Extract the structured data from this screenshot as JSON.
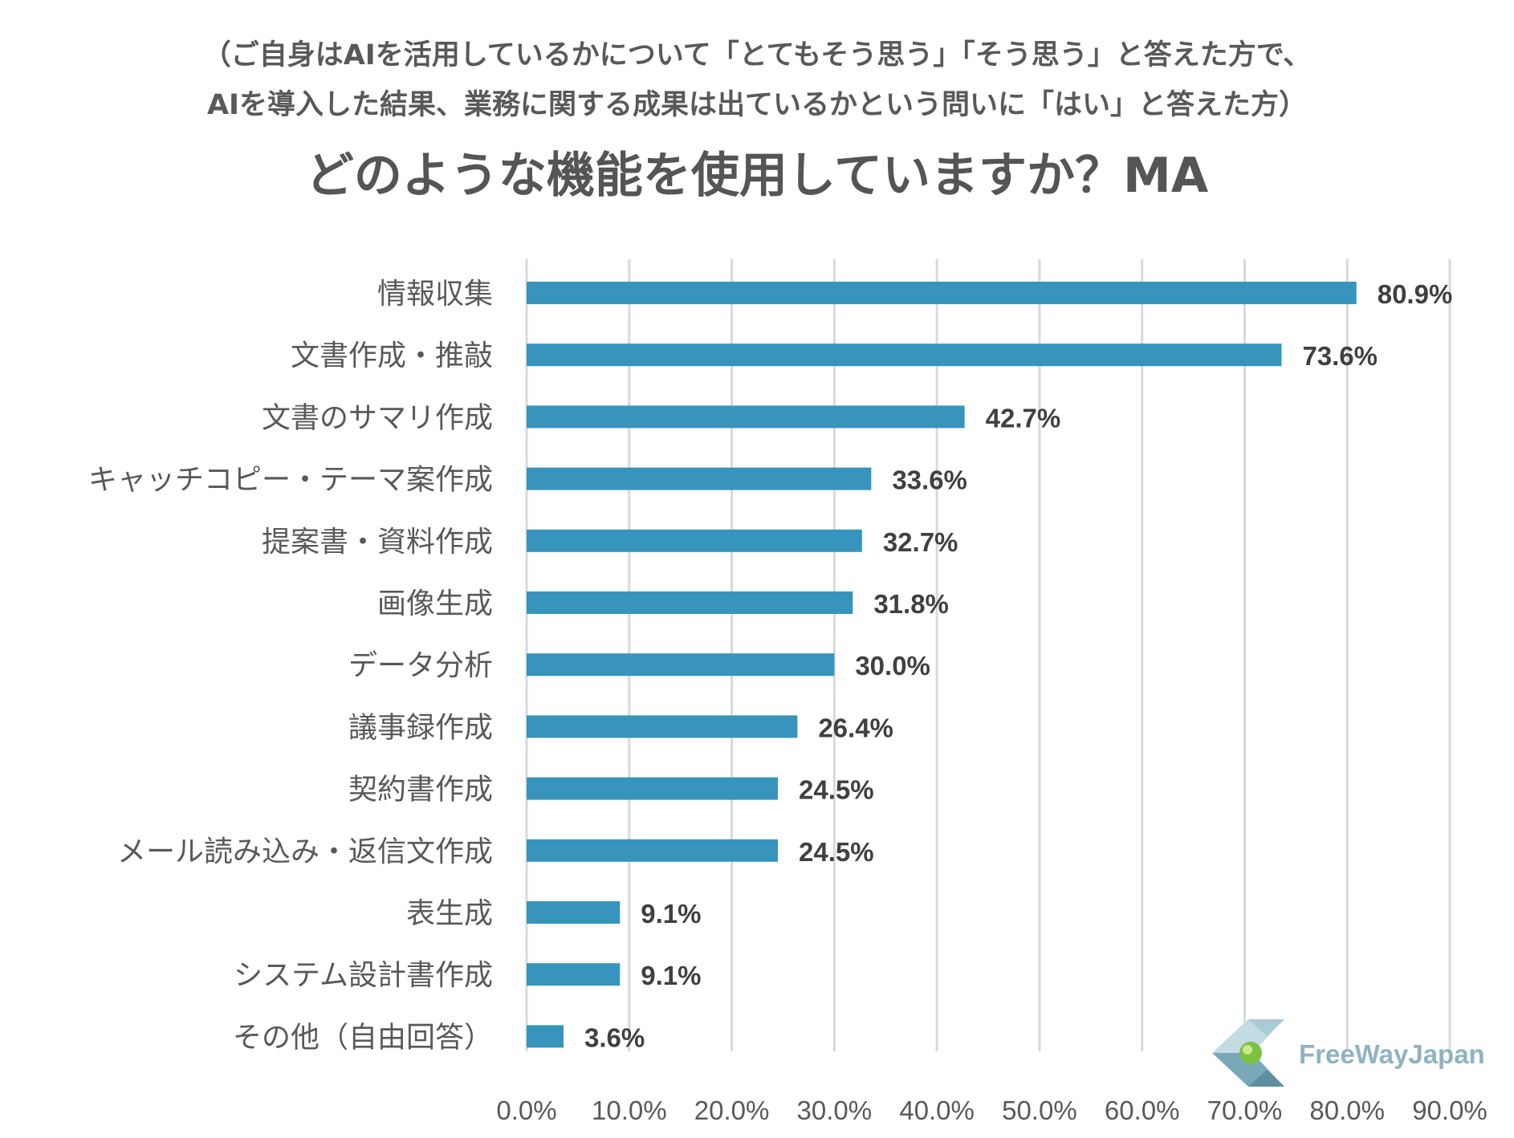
{
  "header": {
    "subtitle_line1": "（ご自身はAIを活用しているかについて「とてもそう思う」「そう思う」と答えた方で、",
    "subtitle_line2": "AIを導入した結果、業務に関する成果は出ているかという問いに「はい」と答えた方）",
    "title": "どのような機能を使用していますか？MA"
  },
  "logo": {
    "text": "FreeWayJapan"
  },
  "colors": {
    "bar": "#3794bd",
    "grid": "#d9d9d9",
    "text": "#595959"
  },
  "chart_data": {
    "type": "bar",
    "orientation": "horizontal",
    "categories": [
      "情報収集",
      "文書作成・推敲",
      "文書のサマリ作成",
      "キャッチコピー・テーマ案作成",
      "提案書・資料作成",
      "画像生成",
      "データ分析",
      "議事録作成",
      "契約書作成",
      "メール読み込み・返信文作成",
      "表生成",
      "システム設計書作成",
      "その他（自由回答）"
    ],
    "values": [
      80.9,
      73.6,
      42.7,
      33.6,
      32.7,
      31.8,
      30.0,
      26.4,
      24.5,
      24.5,
      9.1,
      9.1,
      3.6
    ],
    "value_labels": [
      "80.9%",
      "73.6%",
      "42.7%",
      "33.6%",
      "32.7%",
      "31.8%",
      "30.0%",
      "26.4%",
      "24.5%",
      "24.5%",
      "9.1%",
      "9.1%",
      "3.6%"
    ],
    "xlim": [
      0,
      90
    ],
    "xticks": [
      "0.0%",
      "10.0%",
      "20.0%",
      "30.0%",
      "40.0%",
      "50.0%",
      "60.0%",
      "70.0%",
      "80.0%",
      "90.0%"
    ],
    "grid": true,
    "legend": false
  }
}
